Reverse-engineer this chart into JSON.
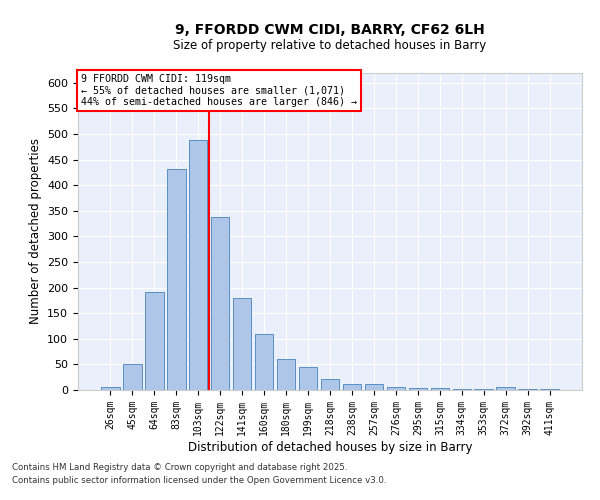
{
  "title1": "9, FFORDD CWM CIDI, BARRY, CF62 6LH",
  "title2": "Size of property relative to detached houses in Barry",
  "xlabel": "Distribution of detached houses by size in Barry",
  "ylabel": "Number of detached properties",
  "bar_labels": [
    "26sqm",
    "45sqm",
    "64sqm",
    "83sqm",
    "103sqm",
    "122sqm",
    "141sqm",
    "160sqm",
    "180sqm",
    "199sqm",
    "218sqm",
    "238sqm",
    "257sqm",
    "276sqm",
    "295sqm",
    "315sqm",
    "334sqm",
    "353sqm",
    "372sqm",
    "392sqm",
    "411sqm"
  ],
  "bar_values": [
    5,
    51,
    191,
    432,
    488,
    338,
    180,
    110,
    60,
    44,
    22,
    11,
    12,
    6,
    4,
    4,
    2,
    1,
    6,
    1,
    2
  ],
  "bar_color": "#aec6e8",
  "bar_edge_color": "#5a8fc2",
  "background_color": "#eaf0fb",
  "grid_color": "#ffffff",
  "vline_color": "red",
  "annotation_title": "9 FFORDD CWM CIDI: 119sqm",
  "annotation_line1": "← 55% of detached houses are smaller (1,071)",
  "annotation_line2": "44% of semi-detached houses are larger (846) →",
  "annotation_box_color": "white",
  "annotation_box_edge": "red",
  "ylim": [
    0,
    620
  ],
  "yticks": [
    0,
    50,
    100,
    150,
    200,
    250,
    300,
    350,
    400,
    450,
    500,
    550,
    600
  ],
  "footer1": "Contains HM Land Registry data © Crown copyright and database right 2025.",
  "footer2": "Contains public sector information licensed under the Open Government Licence v3.0."
}
